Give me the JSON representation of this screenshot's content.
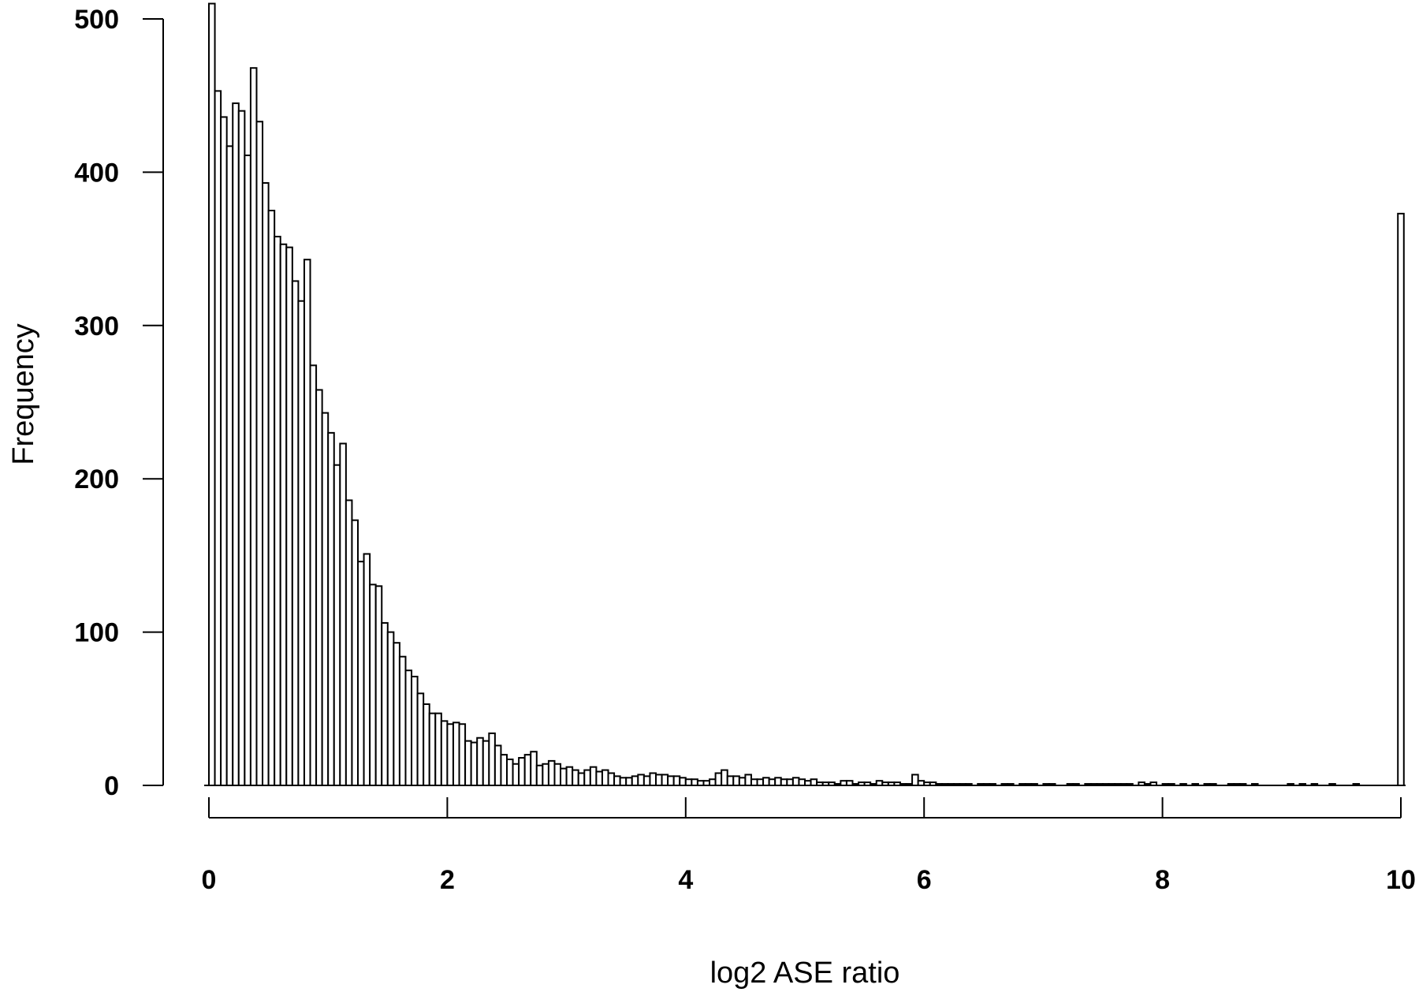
{
  "chart_data": {
    "type": "bar",
    "title": "",
    "xlabel": "log2 ASE ratio",
    "ylabel": "Frequency",
    "xlim": [
      0,
      10
    ],
    "ylim": [
      0,
      500
    ],
    "xticks": [
      0,
      2,
      4,
      6,
      8,
      10
    ],
    "yticks": [
      0,
      100,
      200,
      300,
      400,
      500
    ],
    "grid": false,
    "bin_width": 0.05,
    "bin_start": 0,
    "values": [
      510,
      453,
      436,
      417,
      445,
      440,
      411,
      468,
      433,
      393,
      375,
      358,
      353,
      351,
      329,
      316,
      343,
      274,
      258,
      243,
      230,
      209,
      223,
      186,
      173,
      146,
      151,
      131,
      130,
      106,
      100,
      93,
      84,
      75,
      71,
      60,
      53,
      47,
      47,
      42,
      40,
      41,
      40,
      29,
      28,
      31,
      29,
      34,
      26,
      20,
      17,
      14,
      18,
      20,
      22,
      13,
      14,
      16,
      14,
      11,
      12,
      10,
      8,
      10,
      12,
      9,
      10,
      8,
      6,
      5,
      5,
      6,
      7,
      6,
      8,
      7,
      7,
      6,
      6,
      5,
      4,
      4,
      3,
      3,
      4,
      8,
      10,
      6,
      6,
      5,
      7,
      4,
      4,
      5,
      4,
      5,
      4,
      4,
      5,
      4,
      3,
      4,
      2,
      2,
      2,
      1,
      3,
      3,
      1,
      2,
      2,
      1,
      3,
      2,
      2,
      2,
      1,
      1,
      7,
      3,
      2,
      2,
      1,
      1,
      1,
      1,
      1,
      1,
      0,
      1,
      1,
      1,
      0,
      1,
      1,
      0,
      1,
      1,
      1,
      0,
      1,
      1,
      0,
      0,
      1,
      1,
      0,
      1,
      1,
      1,
      1,
      1,
      1,
      1,
      1,
      0,
      2,
      1,
      2,
      0,
      1,
      1,
      0,
      1,
      0,
      1,
      0,
      1,
      1,
      0,
      0,
      1,
      1,
      1,
      0,
      1,
      0,
      0,
      0,
      0,
      0,
      1,
      0,
      1,
      0,
      1,
      0,
      0,
      1,
      0,
      0,
      0,
      1
    ],
    "overflow_bar": {
      "x": 10,
      "value": 373
    },
    "bar_fill": "#ffffff",
    "bar_stroke": "#000000"
  }
}
